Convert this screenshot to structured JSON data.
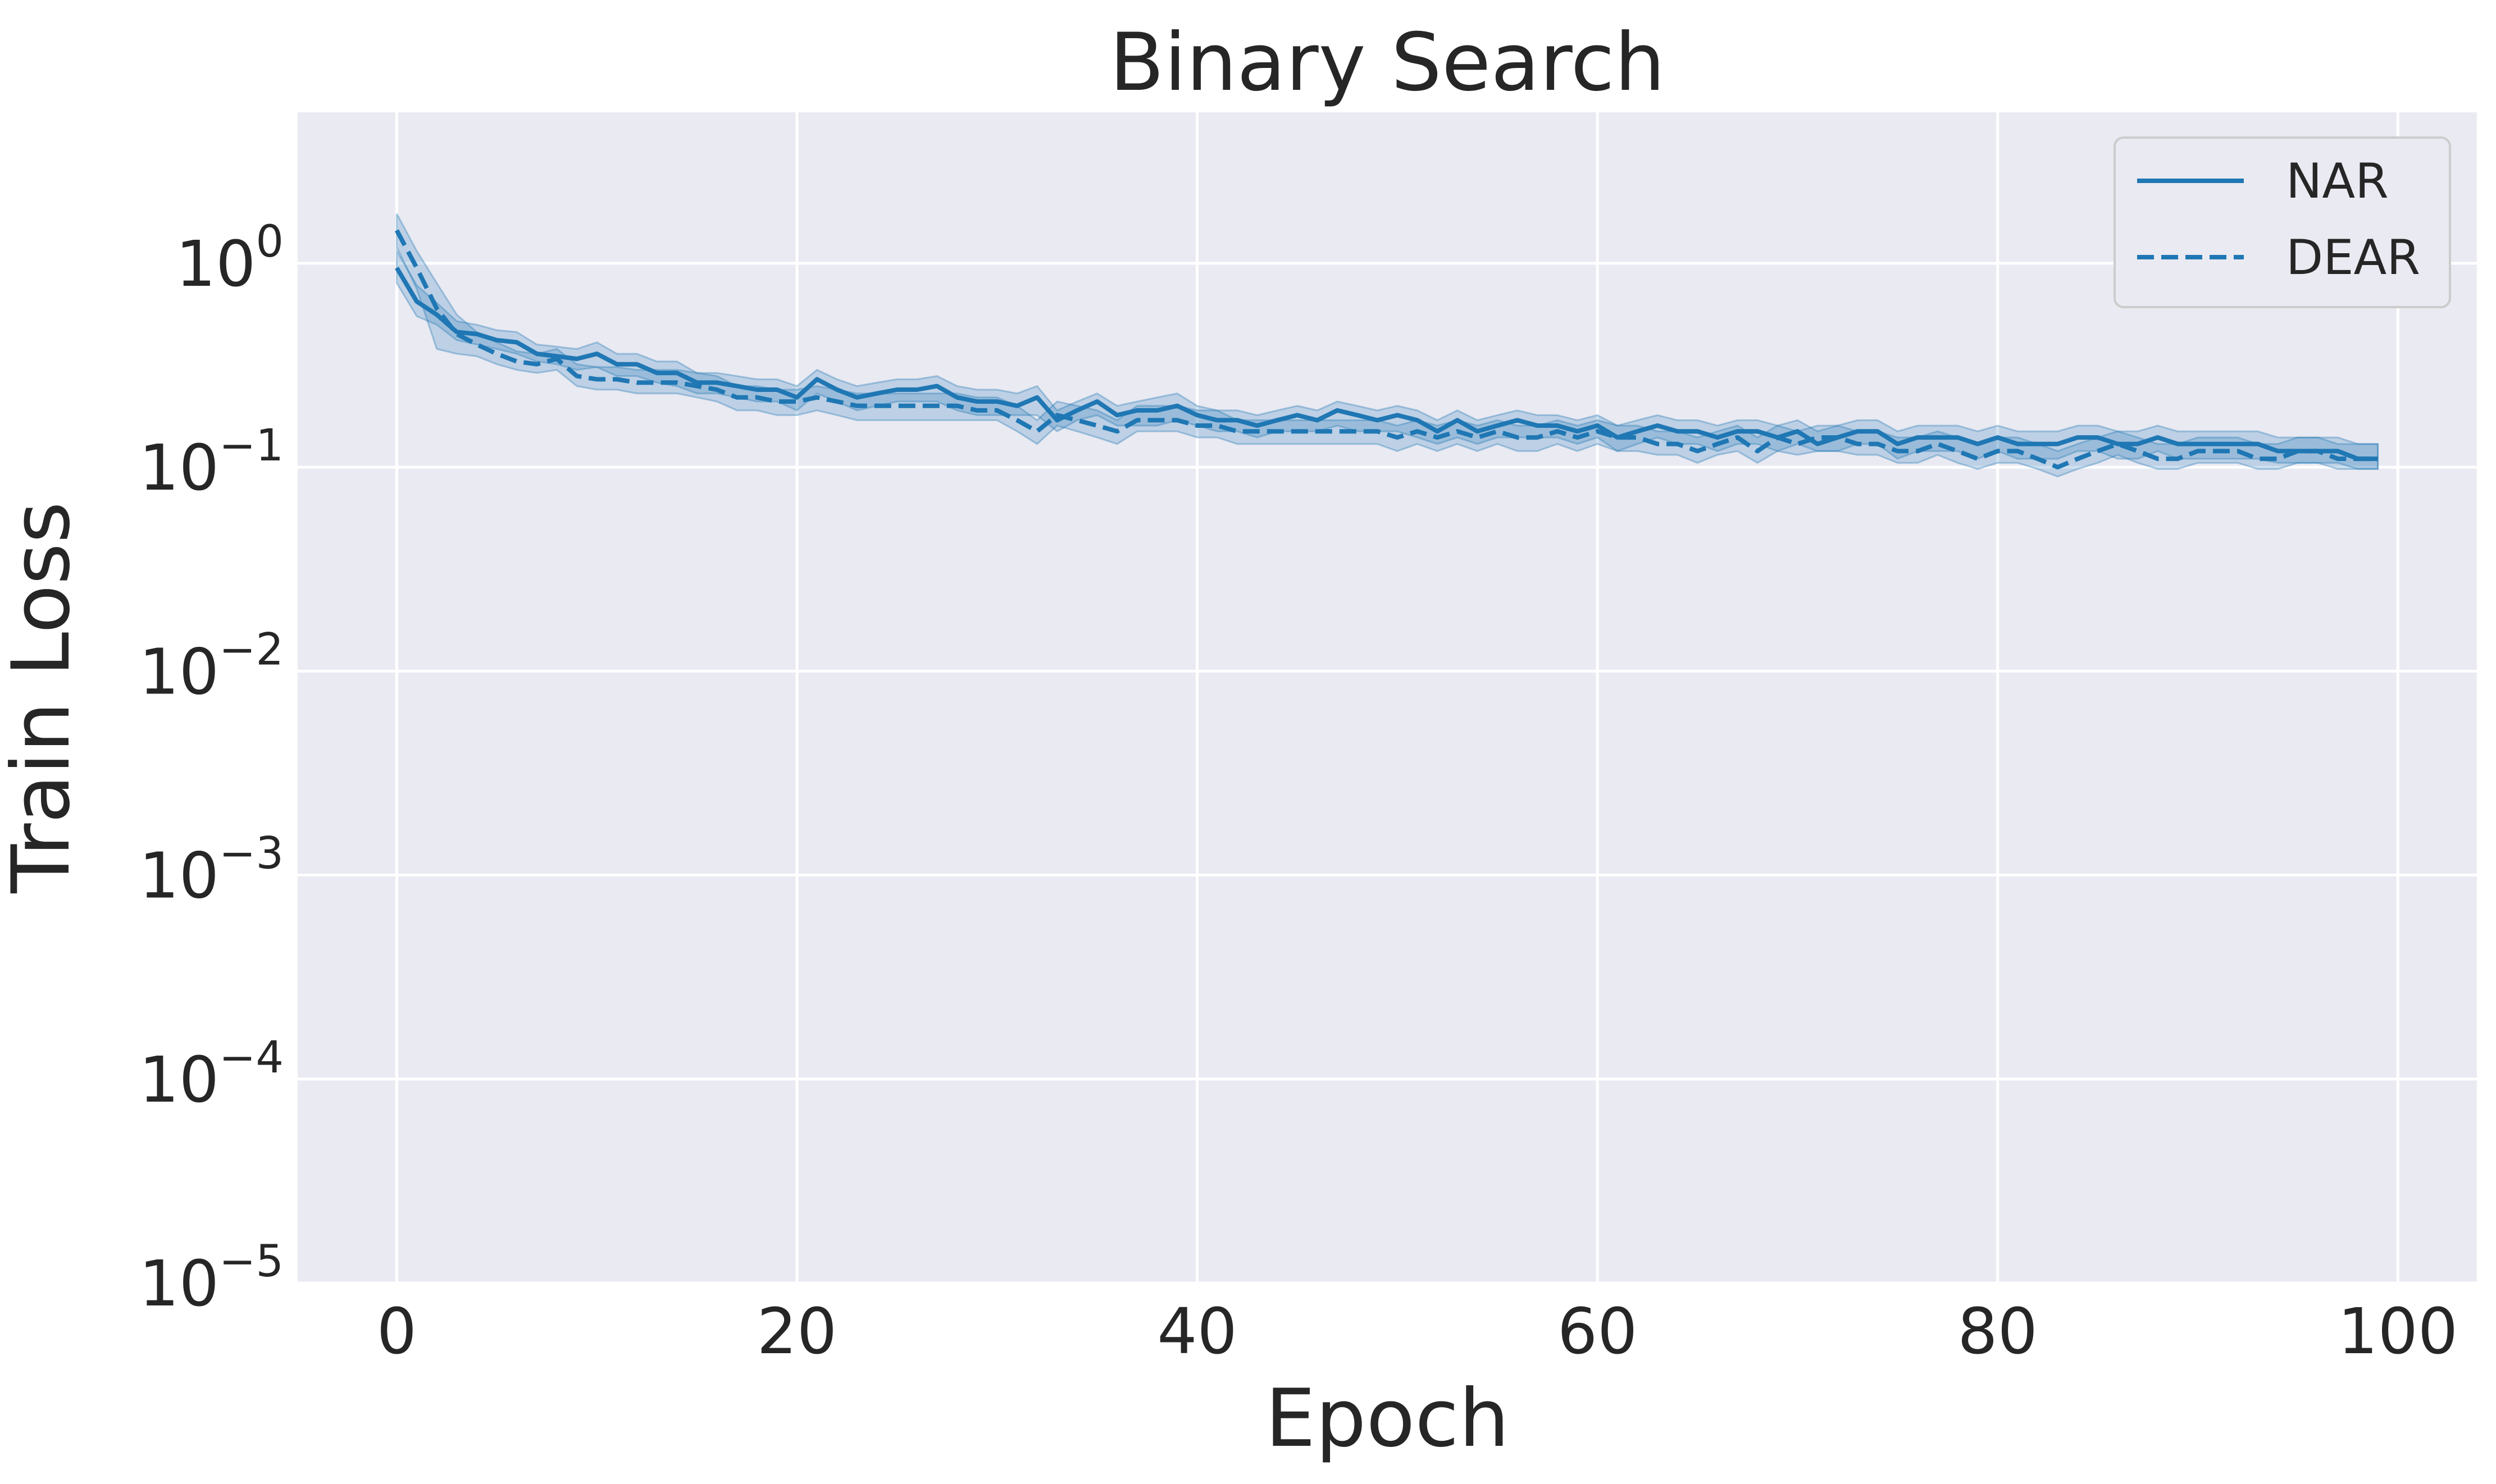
{
  "chart_data": {
    "type": "line",
    "title": "Binary Search",
    "xlabel": "Epoch",
    "ylabel": "Train Loss",
    "xlim": [
      -4.95,
      103.95
    ],
    "ylim": [
      1e-05,
      5.5
    ],
    "yscale": "log",
    "grid": true,
    "legend_position": "top-right",
    "colors": {
      "line": "#1f77b4",
      "band": "#1f77b4",
      "plot_bg": "#eaeaf2",
      "grid": "#ffffff"
    },
    "x_ticks": [
      {
        "value": 0,
        "label": "0"
      },
      {
        "value": 20,
        "label": "20"
      },
      {
        "value": 40,
        "label": "40"
      },
      {
        "value": 60,
        "label": "60"
      },
      {
        "value": 80,
        "label": "80"
      },
      {
        "value": 100,
        "label": "100"
      }
    ],
    "y_ticks": [
      {
        "value": 1,
        "base": "10",
        "exp": "0"
      },
      {
        "value": 0.1,
        "base": "10",
        "exp": "−1"
      },
      {
        "value": 0.01,
        "base": "10",
        "exp": "−2"
      },
      {
        "value": 0.001,
        "base": "10",
        "exp": "−3"
      },
      {
        "value": 0.0001,
        "base": "10",
        "exp": "−4"
      },
      {
        "value": 1e-05,
        "base": "10",
        "exp": "−5"
      }
    ],
    "x": [
      0,
      1,
      2,
      3,
      4,
      5,
      6,
      7,
      8,
      9,
      10,
      11,
      12,
      13,
      14,
      15,
      16,
      17,
      18,
      19,
      20,
      21,
      22,
      23,
      24,
      25,
      26,
      27,
      28,
      29,
      30,
      31,
      32,
      33,
      34,
      35,
      36,
      37,
      38,
      39,
      40,
      41,
      42,
      43,
      44,
      45,
      46,
      47,
      48,
      49,
      50,
      51,
      52,
      53,
      54,
      55,
      56,
      57,
      58,
      59,
      60,
      61,
      62,
      63,
      64,
      65,
      66,
      67,
      68,
      69,
      70,
      71,
      72,
      73,
      74,
      75,
      76,
      77,
      78,
      79,
      80,
      81,
      82,
      83,
      84,
      85,
      86,
      87,
      88,
      89,
      90,
      91,
      92,
      93,
      94,
      95,
      96,
      97,
      98,
      99
    ],
    "series": [
      {
        "name": "NAR",
        "dash": "solid",
        "values": [
          0.95,
          0.65,
          0.56,
          0.46,
          0.45,
          0.42,
          0.41,
          0.36,
          0.35,
          0.34,
          0.36,
          0.32,
          0.32,
          0.29,
          0.29,
          0.26,
          0.26,
          0.25,
          0.24,
          0.24,
          0.22,
          0.27,
          0.24,
          0.22,
          0.23,
          0.24,
          0.24,
          0.25,
          0.22,
          0.21,
          0.21,
          0.2,
          0.22,
          0.17,
          0.19,
          0.21,
          0.18,
          0.19,
          0.19,
          0.2,
          0.18,
          0.17,
          0.17,
          0.16,
          0.17,
          0.18,
          0.17,
          0.19,
          0.18,
          0.17,
          0.18,
          0.17,
          0.15,
          0.17,
          0.15,
          0.16,
          0.17,
          0.16,
          0.16,
          0.15,
          0.16,
          0.14,
          0.15,
          0.16,
          0.15,
          0.15,
          0.14,
          0.15,
          0.15,
          0.14,
          0.15,
          0.13,
          0.14,
          0.15,
          0.15,
          0.13,
          0.14,
          0.14,
          0.14,
          0.13,
          0.14,
          0.13,
          0.13,
          0.13,
          0.14,
          0.14,
          0.13,
          0.13,
          0.14,
          0.13,
          0.13,
          0.13,
          0.13,
          0.13,
          0.12,
          0.12,
          0.12,
          0.12,
          0.11,
          0.11
        ],
        "lower": [
          0.8,
          0.55,
          0.5,
          0.42,
          0.4,
          0.38,
          0.36,
          0.33,
          0.32,
          0.3,
          0.31,
          0.28,
          0.28,
          0.26,
          0.25,
          0.23,
          0.23,
          0.22,
          0.21,
          0.21,
          0.19,
          0.23,
          0.21,
          0.19,
          0.2,
          0.21,
          0.21,
          0.21,
          0.19,
          0.18,
          0.18,
          0.18,
          0.18,
          0.15,
          0.17,
          0.18,
          0.16,
          0.16,
          0.16,
          0.17,
          0.16,
          0.15,
          0.15,
          0.14,
          0.15,
          0.15,
          0.15,
          0.16,
          0.15,
          0.15,
          0.15,
          0.14,
          0.13,
          0.14,
          0.13,
          0.14,
          0.14,
          0.14,
          0.14,
          0.13,
          0.14,
          0.12,
          0.13,
          0.14,
          0.13,
          0.13,
          0.12,
          0.13,
          0.13,
          0.12,
          0.13,
          0.12,
          0.12,
          0.13,
          0.13,
          0.11,
          0.12,
          0.12,
          0.12,
          0.11,
          0.12,
          0.11,
          0.11,
          0.11,
          0.12,
          0.12,
          0.11,
          0.11,
          0.12,
          0.11,
          0.11,
          0.11,
          0.11,
          0.11,
          0.105,
          0.105,
          0.105,
          0.105,
          0.098,
          0.098
        ],
        "upper": [
          1.15,
          0.78,
          0.64,
          0.52,
          0.5,
          0.47,
          0.46,
          0.4,
          0.39,
          0.38,
          0.41,
          0.36,
          0.36,
          0.33,
          0.33,
          0.29,
          0.29,
          0.28,
          0.27,
          0.27,
          0.25,
          0.3,
          0.27,
          0.25,
          0.26,
          0.27,
          0.27,
          0.28,
          0.25,
          0.24,
          0.24,
          0.23,
          0.25,
          0.19,
          0.21,
          0.23,
          0.2,
          0.21,
          0.22,
          0.23,
          0.2,
          0.19,
          0.19,
          0.18,
          0.19,
          0.2,
          0.19,
          0.21,
          0.2,
          0.19,
          0.2,
          0.19,
          0.17,
          0.19,
          0.17,
          0.18,
          0.19,
          0.18,
          0.18,
          0.17,
          0.18,
          0.16,
          0.17,
          0.18,
          0.17,
          0.17,
          0.16,
          0.17,
          0.17,
          0.16,
          0.17,
          0.15,
          0.16,
          0.17,
          0.17,
          0.15,
          0.16,
          0.16,
          0.16,
          0.15,
          0.16,
          0.15,
          0.15,
          0.15,
          0.16,
          0.16,
          0.15,
          0.15,
          0.16,
          0.15,
          0.15,
          0.15,
          0.15,
          0.15,
          0.14,
          0.14,
          0.14,
          0.14,
          0.13,
          0.13
        ]
      },
      {
        "name": "DEAR",
        "dash": "dashed",
        "values": [
          1.45,
          0.95,
          0.6,
          0.45,
          0.4,
          0.36,
          0.33,
          0.32,
          0.34,
          0.28,
          0.27,
          0.27,
          0.26,
          0.26,
          0.26,
          0.25,
          0.24,
          0.22,
          0.22,
          0.21,
          0.21,
          0.22,
          0.21,
          0.2,
          0.2,
          0.2,
          0.2,
          0.2,
          0.2,
          0.19,
          0.19,
          0.17,
          0.15,
          0.18,
          0.17,
          0.16,
          0.15,
          0.17,
          0.17,
          0.17,
          0.16,
          0.16,
          0.15,
          0.15,
          0.15,
          0.15,
          0.15,
          0.15,
          0.15,
          0.15,
          0.14,
          0.15,
          0.14,
          0.15,
          0.14,
          0.15,
          0.14,
          0.14,
          0.15,
          0.14,
          0.15,
          0.14,
          0.14,
          0.13,
          0.13,
          0.12,
          0.13,
          0.14,
          0.12,
          0.14,
          0.13,
          0.14,
          0.14,
          0.13,
          0.13,
          0.12,
          0.12,
          0.13,
          0.12,
          0.11,
          0.12,
          0.12,
          0.11,
          0.1,
          0.11,
          0.12,
          0.13,
          0.12,
          0.11,
          0.11,
          0.12,
          0.12,
          0.12,
          0.11,
          0.11,
          0.12,
          0.12,
          0.11,
          0.11,
          0.11
        ],
        "lower": [
          1.2,
          0.75,
          0.38,
          0.36,
          0.35,
          0.32,
          0.3,
          0.29,
          0.3,
          0.25,
          0.24,
          0.24,
          0.23,
          0.23,
          0.23,
          0.22,
          0.21,
          0.19,
          0.19,
          0.18,
          0.18,
          0.19,
          0.18,
          0.17,
          0.17,
          0.17,
          0.17,
          0.17,
          0.17,
          0.17,
          0.17,
          0.15,
          0.13,
          0.16,
          0.15,
          0.14,
          0.13,
          0.15,
          0.15,
          0.15,
          0.14,
          0.14,
          0.13,
          0.13,
          0.13,
          0.13,
          0.13,
          0.13,
          0.13,
          0.13,
          0.12,
          0.13,
          0.12,
          0.13,
          0.12,
          0.13,
          0.12,
          0.12,
          0.13,
          0.12,
          0.13,
          0.12,
          0.12,
          0.115,
          0.115,
          0.105,
          0.115,
          0.12,
          0.105,
          0.12,
          0.115,
          0.12,
          0.12,
          0.115,
          0.115,
          0.105,
          0.105,
          0.115,
          0.105,
          0.098,
          0.105,
          0.105,
          0.098,
          0.09,
          0.098,
          0.105,
          0.115,
          0.105,
          0.098,
          0.098,
          0.105,
          0.105,
          0.105,
          0.098,
          0.098,
          0.105,
          0.105,
          0.098,
          0.098,
          0.098
        ],
        "upper": [
          1.75,
          1.15,
          0.8,
          0.56,
          0.46,
          0.41,
          0.37,
          0.36,
          0.38,
          0.32,
          0.31,
          0.31,
          0.3,
          0.3,
          0.3,
          0.29,
          0.28,
          0.25,
          0.25,
          0.24,
          0.24,
          0.25,
          0.24,
          0.23,
          0.23,
          0.23,
          0.23,
          0.23,
          0.23,
          0.22,
          0.22,
          0.2,
          0.17,
          0.21,
          0.2,
          0.19,
          0.17,
          0.2,
          0.2,
          0.2,
          0.19,
          0.19,
          0.17,
          0.17,
          0.17,
          0.17,
          0.17,
          0.17,
          0.17,
          0.17,
          0.16,
          0.17,
          0.16,
          0.17,
          0.16,
          0.17,
          0.16,
          0.16,
          0.17,
          0.16,
          0.17,
          0.16,
          0.16,
          0.15,
          0.15,
          0.14,
          0.15,
          0.16,
          0.14,
          0.16,
          0.15,
          0.16,
          0.16,
          0.15,
          0.15,
          0.14,
          0.14,
          0.15,
          0.14,
          0.13,
          0.14,
          0.14,
          0.13,
          0.12,
          0.13,
          0.14,
          0.15,
          0.14,
          0.13,
          0.13,
          0.14,
          0.14,
          0.14,
          0.13,
          0.13,
          0.14,
          0.14,
          0.13,
          0.13,
          0.13
        ]
      }
    ]
  }
}
